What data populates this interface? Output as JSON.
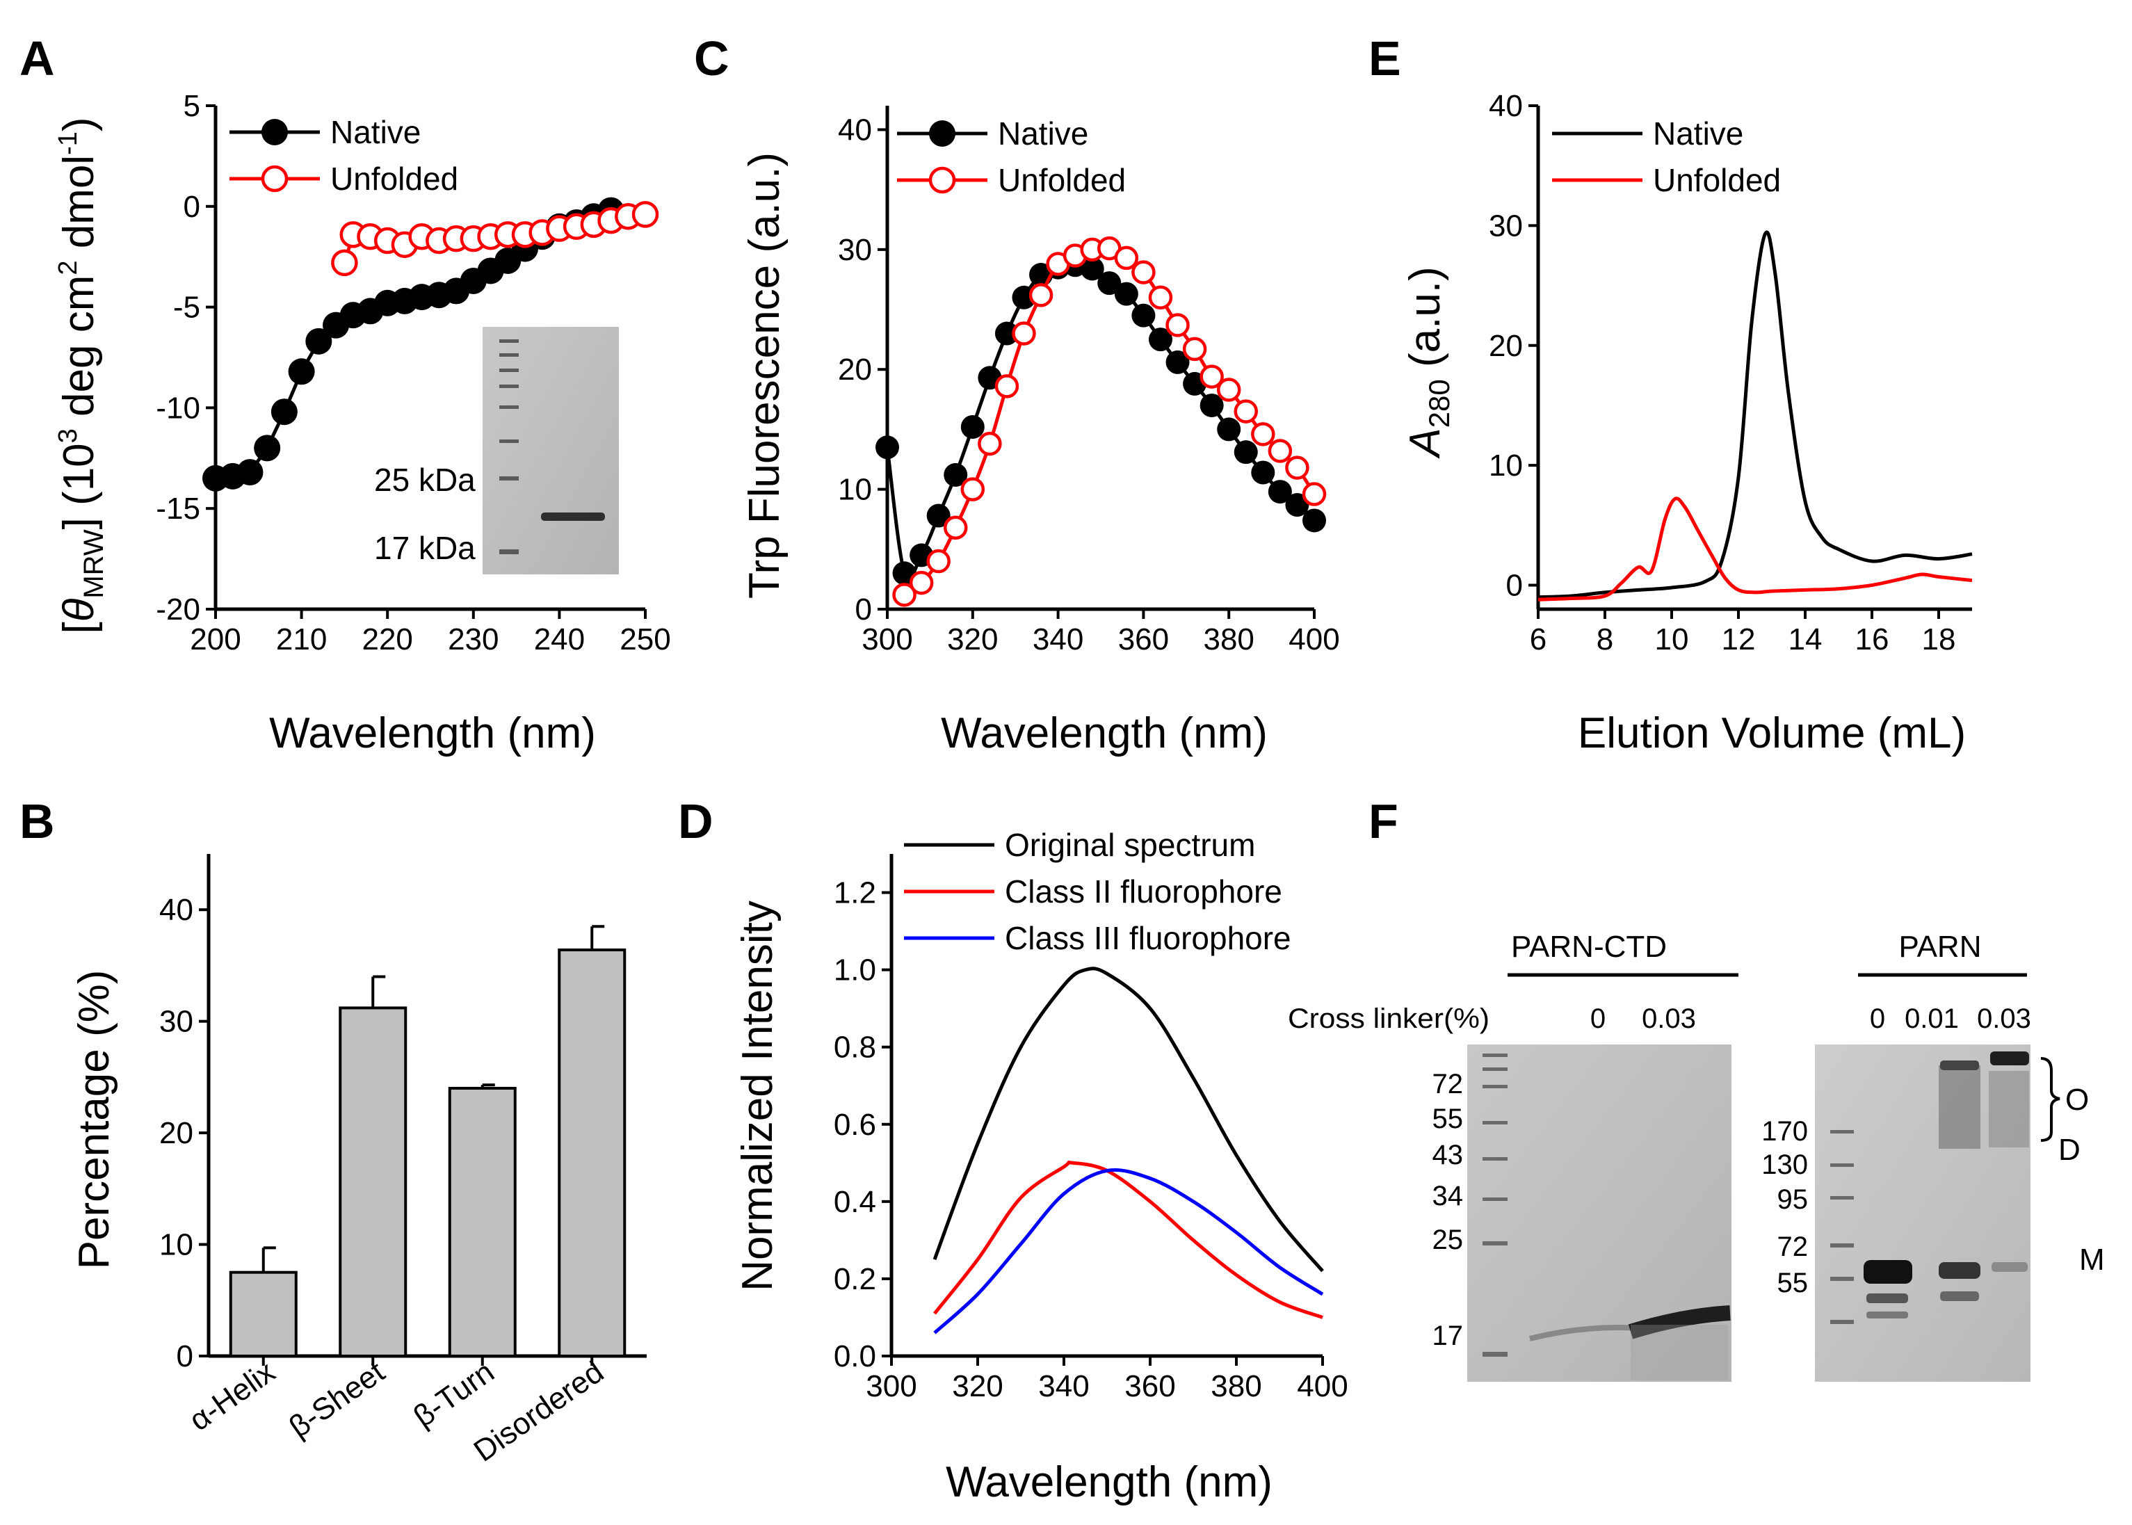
{
  "panel_labels": {
    "A": "A",
    "B": "B",
    "C": "C",
    "D": "D",
    "E": "E",
    "F": "F"
  },
  "chart_data": [
    {
      "id": "A",
      "type": "line",
      "xlabel": "Wavelength (nm)",
      "ylabel_parts": {
        "open": "[",
        "theta": "θ",
        "sub": "MRW",
        "mid": "] (10",
        "sup3": "3",
        "mid2": " deg cm",
        "sup2": "2",
        "mid3": " dmol",
        "supneg": "-1",
        "close": ")"
      },
      "xlim": [
        200,
        250
      ],
      "ylim": [
        -20,
        5
      ],
      "xticks": [
        200,
        210,
        220,
        230,
        240,
        250
      ],
      "yticks": [
        5,
        0,
        -5,
        -10,
        -15,
        -20
      ],
      "series": [
        {
          "name": "Native",
          "color": "#000000",
          "marker": "filled",
          "x": [
            200,
            202,
            204,
            206,
            208,
            210,
            212,
            214,
            216,
            218,
            220,
            222,
            224,
            226,
            228,
            230,
            232,
            234,
            236,
            238,
            240,
            242,
            244,
            246,
            248
          ],
          "y": [
            -13.5,
            -13.4,
            -13.2,
            -12,
            -10.2,
            -8.2,
            -6.7,
            -5.9,
            -5.4,
            -5.2,
            -4.8,
            -4.7,
            -4.5,
            -4.4,
            -4.2,
            -3.7,
            -3.2,
            -2.7,
            -2.1,
            -1.5,
            -1.0,
            -0.8,
            -0.5,
            -0.2,
            -0.5
          ]
        },
        {
          "name": "Unfolded",
          "color": "#ff0000",
          "marker": "open",
          "x": [
            215,
            216,
            218,
            220,
            222,
            224,
            226,
            228,
            230,
            232,
            234,
            236,
            238,
            240,
            242,
            244,
            246,
            248,
            250
          ],
          "y": [
            -2.8,
            -1.4,
            -1.5,
            -1.7,
            -1.9,
            -1.5,
            -1.7,
            -1.6,
            -1.6,
            -1.5,
            -1.4,
            -1.4,
            -1.3,
            -1.1,
            -1.0,
            -0.9,
            -0.7,
            -0.5,
            -0.4
          ]
        }
      ],
      "inset": {
        "label_top": "25 kDa",
        "label_bottom": "17 kDa"
      }
    },
    {
      "id": "B",
      "type": "bar",
      "ylabel": "Percentage (%)",
      "categories": [
        "α-Helix",
        "β-Sheet",
        "β-Turn",
        "Disordered"
      ],
      "values": [
        7.5,
        31.2,
        24.0,
        36.4
      ],
      "errors": [
        2.2,
        2.8,
        0.3,
        2.1
      ],
      "ylim": [
        0,
        45
      ],
      "yticks": [
        0,
        10,
        20,
        30,
        40
      ]
    },
    {
      "id": "C",
      "type": "line",
      "xlabel": "Wavelength (nm)",
      "ylabel": "Trp Fluorescence (a.u.)",
      "xlim": [
        300,
        400
      ],
      "ylim": [
        0,
        42
      ],
      "xticks": [
        300,
        320,
        340,
        360,
        380,
        400
      ],
      "yticks": [
        0,
        10,
        20,
        30,
        40
      ],
      "series": [
        {
          "name": "Native",
          "color": "#000000",
          "marker": "filled",
          "x": [
            300,
            304,
            308,
            312,
            316,
            320,
            324,
            328,
            332,
            336,
            340,
            344,
            348,
            352,
            356,
            360,
            364,
            368,
            372,
            376,
            380,
            384,
            388,
            392,
            396,
            400
          ],
          "y": [
            13.5,
            3.0,
            4.5,
            7.8,
            11.2,
            15.2,
            19.3,
            23.0,
            26.0,
            27.9,
            28.5,
            28.7,
            28.4,
            27.2,
            26.3,
            24.5,
            22.5,
            20.6,
            18.8,
            17.0,
            15.0,
            13.1,
            11.4,
            9.8,
            8.7,
            7.4
          ]
        },
        {
          "name": "Unfolded",
          "color": "#ff0000",
          "marker": "open",
          "x": [
            304,
            308,
            312,
            316,
            320,
            324,
            328,
            332,
            336,
            340,
            344,
            348,
            352,
            356,
            360,
            364,
            368,
            372,
            376,
            380,
            384,
            388,
            392,
            396,
            400
          ],
          "y": [
            1.2,
            2.2,
            4.0,
            6.8,
            10.0,
            13.8,
            18.6,
            23.0,
            26.2,
            28.8,
            29.5,
            30.0,
            30.1,
            29.3,
            28.1,
            26.0,
            23.7,
            21.7,
            19.4,
            18.3,
            16.5,
            14.6,
            13.2,
            11.8,
            9.6
          ]
        }
      ]
    },
    {
      "id": "D",
      "type": "line",
      "xlabel": "Wavelength (nm)",
      "ylabel": "Normalized Intensity",
      "xlim": [
        300,
        400
      ],
      "ylim": [
        0,
        1.3
      ],
      "xticks": [
        300,
        320,
        340,
        360,
        380,
        400
      ],
      "yticks": [
        0.0,
        0.2,
        0.4,
        0.6,
        0.8,
        1.0,
        1.2
      ],
      "series": [
        {
          "name": "Original spectrum",
          "color": "#000000",
          "x": [
            310,
            320,
            330,
            340,
            345,
            350,
            360,
            370,
            380,
            390,
            400
          ],
          "y": [
            0.25,
            0.55,
            0.8,
            0.96,
            1.0,
            0.99,
            0.9,
            0.72,
            0.52,
            0.35,
            0.22
          ]
        },
        {
          "name": "Class II fluorophore",
          "color": "#ff0000",
          "x": [
            310,
            320,
            330,
            340,
            342,
            350,
            360,
            370,
            380,
            390,
            400
          ],
          "y": [
            0.11,
            0.25,
            0.41,
            0.49,
            0.5,
            0.48,
            0.4,
            0.3,
            0.21,
            0.14,
            0.1
          ]
        },
        {
          "name": "Class III fluorophore",
          "color": "#0000ff",
          "x": [
            310,
            320,
            330,
            340,
            350,
            360,
            370,
            380,
            390,
            400
          ],
          "y": [
            0.06,
            0.16,
            0.29,
            0.42,
            0.48,
            0.46,
            0.4,
            0.32,
            0.23,
            0.16
          ]
        }
      ]
    },
    {
      "id": "E",
      "type": "line",
      "xlabel": "Elution Volume (mL)",
      "ylabel_A": "A",
      "ylabel_sub": "280",
      "ylabel_rest": " (a.u.)",
      "xlim": [
        6,
        19
      ],
      "ylim": [
        -2,
        40
      ],
      "xticks": [
        6,
        8,
        10,
        12,
        14,
        16,
        18
      ],
      "yticks": [
        0,
        10,
        20,
        30,
        40
      ],
      "series": [
        {
          "name": "Native",
          "color": "#000000",
          "x": [
            6,
            7,
            8,
            9,
            10,
            11,
            11.5,
            12,
            12.4,
            12.8,
            13.1,
            13.5,
            14,
            14.5,
            15,
            16,
            17,
            18,
            19
          ],
          "y": [
            -1.0,
            -0.9,
            -0.6,
            -0.4,
            -0.2,
            0.3,
            2.0,
            9.0,
            22.0,
            29.3,
            26.0,
            16.0,
            7.0,
            4.0,
            3.0,
            2.0,
            2.5,
            2.2,
            2.6
          ]
        },
        {
          "name": "Unfolded",
          "color": "#ff0000",
          "x": [
            6,
            7,
            8,
            8.5,
            9,
            9.4,
            9.8,
            10.1,
            10.4,
            10.8,
            11.2,
            11.6,
            12,
            12.5,
            13,
            14,
            15,
            16,
            17,
            17.5,
            18,
            19
          ],
          "y": [
            -1.2,
            -1.1,
            -0.9,
            0.2,
            1.5,
            1.2,
            5.5,
            7.2,
            6.5,
            4.5,
            2.5,
            0.6,
            -0.4,
            -0.6,
            -0.5,
            -0.4,
            -0.3,
            0.0,
            0.6,
            0.9,
            0.7,
            0.4
          ]
        }
      ]
    }
  ],
  "panelF": {
    "left": {
      "title": "PARN-CTD",
      "crosslinker_label": "Cross linker(%)",
      "lanes": [
        "0",
        "0.03"
      ],
      "markers": [
        "72",
        "55",
        "43",
        "34",
        "25",
        "17"
      ]
    },
    "right": {
      "title": "PARN",
      "lanes": [
        "0",
        "0.01",
        "0.03"
      ],
      "markers": [
        "170",
        "130",
        "95",
        "72",
        "55"
      ],
      "annot_O": "O",
      "annot_D": "D",
      "annot_M": "M"
    }
  }
}
